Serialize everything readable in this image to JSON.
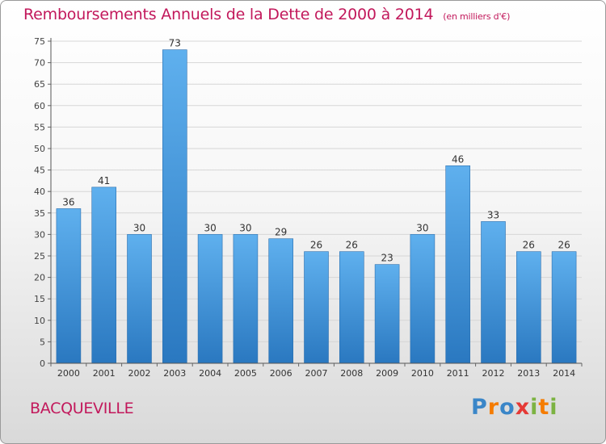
{
  "title": {
    "main": "Remboursements Annuels de la Dette de 2000 à 2014",
    "unit": "(en milliers d'€)"
  },
  "commune": "BACQUEVILLE",
  "logo": {
    "text": "Proxiti",
    "letters": [
      "P",
      "r",
      "o",
      "x",
      "i",
      "t",
      "i"
    ],
    "colors": [
      "#3a86c8",
      "#f57c00",
      "#3a86c8",
      "#e53935",
      "#7cb342",
      "#f57c00",
      "#7cb342"
    ]
  },
  "chart_data": {
    "type": "bar",
    "categories": [
      "2000",
      "2001",
      "2002",
      "2003",
      "2004",
      "2005",
      "2006",
      "2007",
      "2008",
      "2009",
      "2010",
      "2011",
      "2012",
      "2013",
      "2014"
    ],
    "values": [
      36,
      41,
      30,
      73,
      30,
      30,
      29,
      26,
      26,
      23,
      30,
      46,
      33,
      26,
      26
    ],
    "ylim": [
      0,
      75
    ],
    "yticks": [
      0,
      5,
      10,
      15,
      20,
      25,
      30,
      35,
      40,
      45,
      50,
      55,
      60,
      65,
      70,
      75
    ],
    "grid": true,
    "bar_color": "#4a9be0"
  }
}
